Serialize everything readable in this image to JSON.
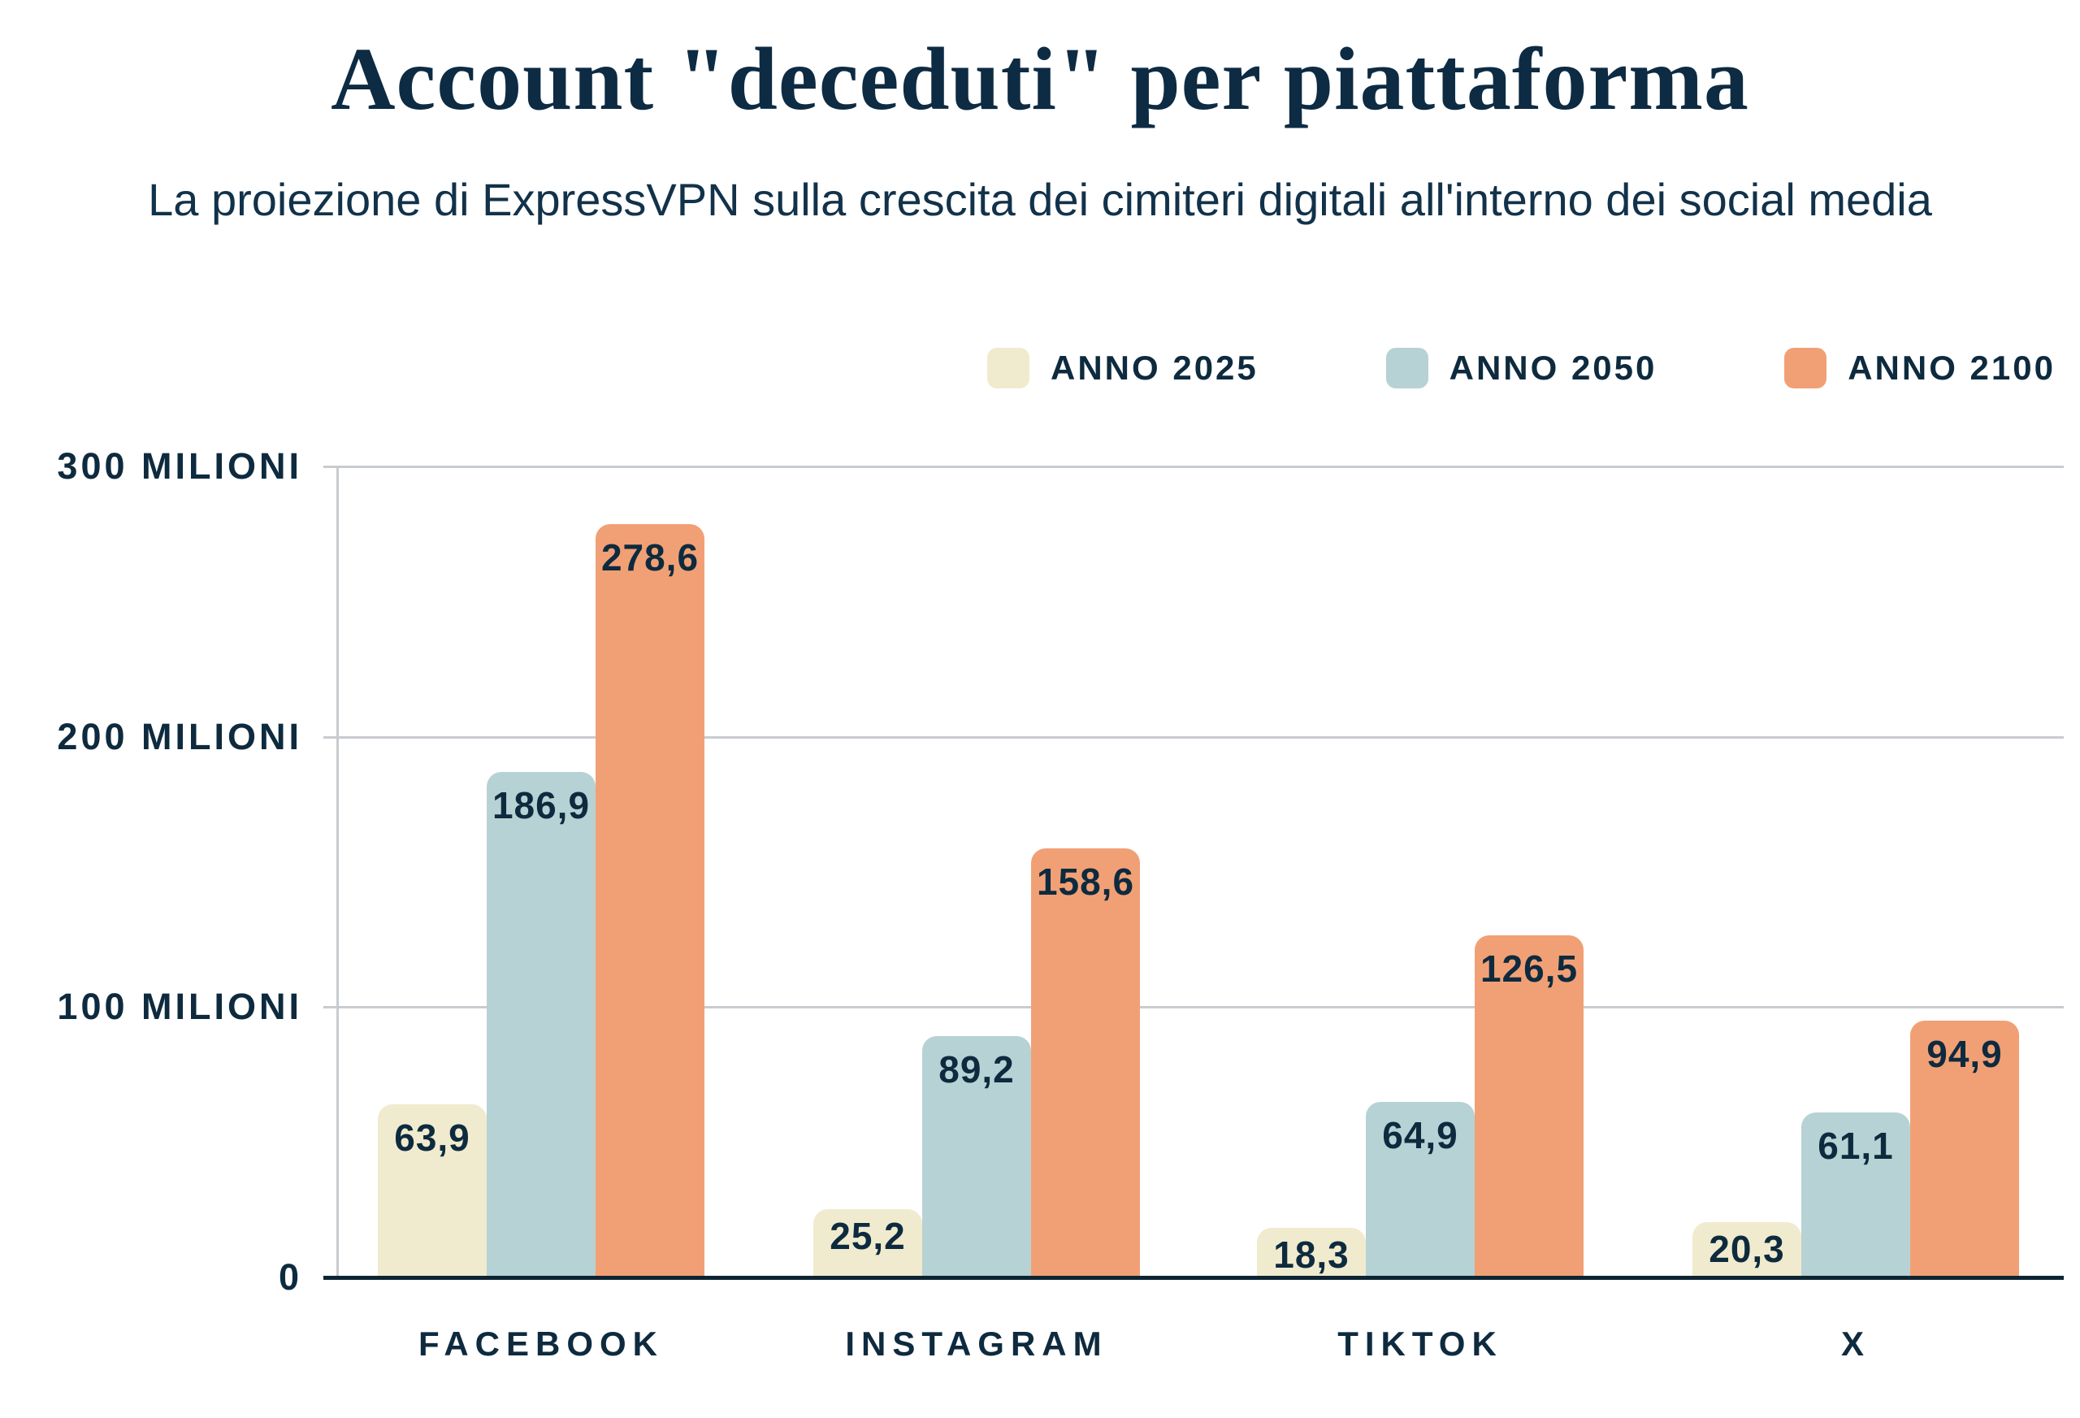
{
  "header": {
    "title": "Account \"deceduti\" per piattaforma",
    "subtitle": "La proiezione di ExpressVPN sulla crescita dei cimiteri digitali all'interno dei social media"
  },
  "chart_data": {
    "type": "bar",
    "title": "Account \"deceduti\" per piattaforma",
    "subtitle": "La proiezione di ExpressVPN sulla crescita dei cimiteri digitali all'interno dei social media",
    "categories": [
      "FACEBOOK",
      "INSTAGRAM",
      "TIKTOK",
      "X"
    ],
    "series": [
      {
        "name": "ANNO 2025",
        "color": "#f0ebce",
        "values": [
          63.9,
          25.2,
          18.3,
          20.3
        ],
        "labels": [
          "63,9",
          "25,2",
          "18,3",
          "20,3"
        ]
      },
      {
        "name": "ANNO 2050",
        "color": "#b6d2d4",
        "values": [
          186.9,
          89.2,
          64.9,
          61.1
        ],
        "labels": [
          "186,9",
          "89,2",
          "64,9",
          "61,1"
        ]
      },
      {
        "name": "ANNO 2100",
        "color": "#f1a075",
        "values": [
          278.6,
          158.6,
          126.5,
          94.9
        ],
        "labels": [
          "278,6",
          "158,6",
          "126,5",
          "94,9"
        ]
      }
    ],
    "y_ticks": [
      {
        "value": 300,
        "label": "300 MILIONI"
      },
      {
        "value": 200,
        "label": "200 MILIONI"
      },
      {
        "value": 100,
        "label": "100 MILIONI"
      },
      {
        "value": 0,
        "label": "0"
      }
    ],
    "ylim": [
      0,
      300
    ],
    "grid": true,
    "legend_position": "top-right",
    "colors": {
      "text": "#0e2a3e",
      "grid": "#c8ccd0",
      "baseline": "#0d2433",
      "background": "#ffffff"
    }
  }
}
